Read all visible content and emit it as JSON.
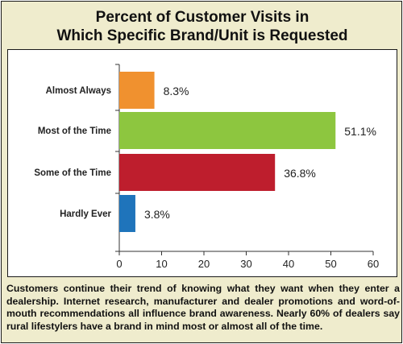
{
  "title": {
    "line1": "Percent of Customer Visits in",
    "line2": "Which Specific Brand/Unit is Requested"
  },
  "chart_data": {
    "type": "bar",
    "orientation": "horizontal",
    "categories": [
      "Almost Always",
      "Most of the Time",
      "Some of the Time",
      "Hardly Ever"
    ],
    "values": [
      8.3,
      51.1,
      36.8,
      3.8
    ],
    "value_labels": [
      "8.3%",
      "51.1%",
      "36.8%",
      "3.8%"
    ],
    "colors": [
      "#f0912f",
      "#8dc63f",
      "#be1e2d",
      "#1f74bb"
    ],
    "xlim": [
      0,
      60
    ],
    "xticks": [
      0,
      10,
      20,
      30,
      40,
      50,
      60
    ],
    "grid": false,
    "xlabel": "",
    "ylabel": ""
  },
  "caption": "Customers continue their trend of knowing what they want when they enter a dealership. Internet research, manufacturer and dealer promotions and word-of-mouth recommendations all influence brand awareness. Nearly 60% of dealers say rural lifestylers have a brand in mind most or almost all of the time."
}
